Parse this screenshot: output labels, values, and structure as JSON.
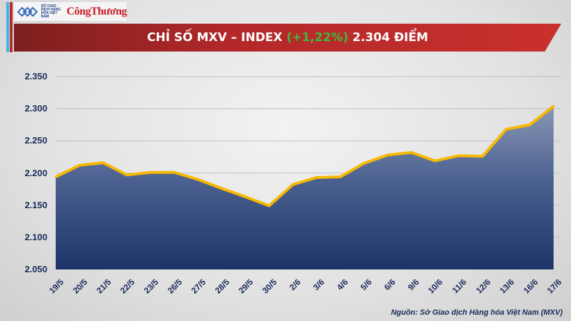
{
  "header": {
    "logo_org": "SỞ GIAO DỊCH HÀNG HÓA VIỆT NAM",
    "logo_brand": "CôngThương",
    "title_prefix": "CHỈ SỐ MXV – INDEX ",
    "title_change": "(+1,22%)",
    "title_suffix": " 2.304 ĐIỂM"
  },
  "colors": {
    "area_top": "#8a97b5",
    "area_bottom": "#1d3468",
    "line": "#f6b800",
    "change": "#3dbb3d",
    "banner": "#b3282a"
  },
  "chart_data": {
    "type": "area",
    "title": "CHỈ SỐ MXV – INDEX (+1,22%) 2.304 ĐIỂM",
    "categories": [
      "19/5",
      "20/5",
      "21/5",
      "22/5",
      "23/5",
      "26/5",
      "27/5",
      "28/5",
      "29/5",
      "30/5",
      "2/6",
      "3/6",
      "4/6",
      "5/6",
      "6/6",
      "9/6",
      "10/6",
      "11/6",
      "12/6",
      "13/6",
      "16/6",
      "17/6"
    ],
    "values": [
      2194,
      2212,
      2216,
      2197,
      2201,
      2201,
      2190,
      2176,
      2163,
      2149,
      2182,
      2193,
      2194,
      2215,
      2228,
      2232,
      2219,
      2227,
      2226,
      2268,
      2275,
      2304
    ],
    "yticks": [
      "2.050",
      "2.100",
      "2.150",
      "2.200",
      "2.250",
      "2.300",
      "2.350"
    ],
    "ylim": [
      2050,
      2350
    ],
    "grid": true
  },
  "source": "Nguồn: Sở Giao dịch Hàng hóa Việt Nam (MXV)"
}
